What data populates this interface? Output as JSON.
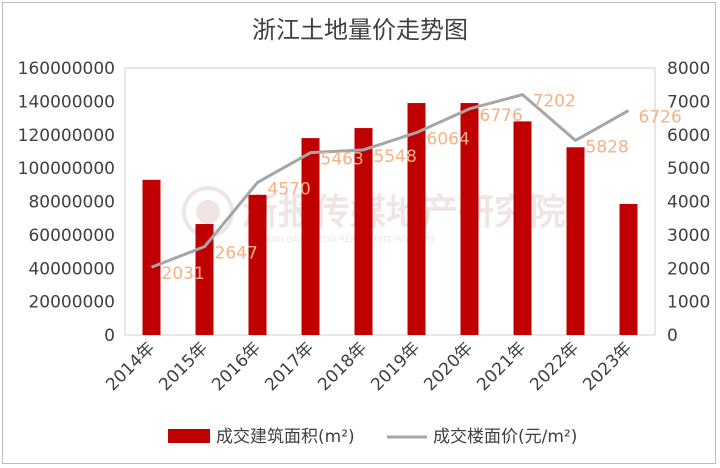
{
  "chart_data": {
    "type": "bar+line",
    "title": "浙江土地量价走势图",
    "categories": [
      "2014年",
      "2015年",
      "2016年",
      "2017年",
      "2018年",
      "2019年",
      "2020年",
      "2021年",
      "2022年",
      "2023年"
    ],
    "series": [
      {
        "name": "成交建筑面积(m²)",
        "type": "bar",
        "axis": "left",
        "color": "#c00000",
        "values": [
          93000000,
          66500000,
          84000000,
          118000000,
          124000000,
          139000000,
          139000000,
          128000000,
          112500000,
          78500000
        ]
      },
      {
        "name": "成交楼面价(元/m²)",
        "type": "line",
        "axis": "right",
        "color": "#a6a6a6",
        "values": [
          2031,
          2647,
          4570,
          5463,
          5548,
          6064,
          6776,
          7202,
          5828,
          6726
        ],
        "data_labels": [
          "2031",
          "2647",
          "4570",
          "5463",
          "5548",
          "6064",
          "6776",
          "7202",
          "5828",
          "6726"
        ],
        "label_color": "#f4b183"
      }
    ],
    "y_left": {
      "min": 0,
      "max": 160000000,
      "ticks": [
        "0",
        "20000000",
        "40000000",
        "60000000",
        "80000000",
        "100000000",
        "120000000",
        "140000000",
        "160000000"
      ]
    },
    "y_right": {
      "min": 0,
      "max": 8000,
      "ticks": [
        "0",
        "1000",
        "2000",
        "3000",
        "4000",
        "5000",
        "6000",
        "7000",
        "8000"
      ]
    },
    "grid": false,
    "legend": "bottom"
  },
  "watermark": {
    "text": "浙报传媒地产研究院",
    "subtext": "ZHEJIANG DAILY MEDIA REAL ESTATE INSTITUTE"
  }
}
